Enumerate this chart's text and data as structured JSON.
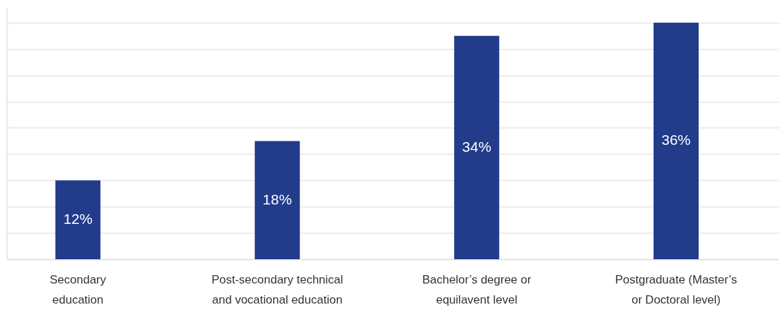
{
  "chart_data": {
    "type": "bar",
    "categories": [
      "Secondary\neducation",
      "Post-secondary technical\nand vocational education",
      "Bachelor’s degree or\nequilavent level",
      "Postgraduate (Master’s\nor Doctoral level)"
    ],
    "values": [
      12,
      18,
      34,
      36
    ],
    "value_labels": [
      "12%",
      "18%",
      "34%",
      "36%"
    ],
    "color": "#223b8a",
    "ylim": [
      0,
      38.4
    ],
    "yticks": [
      {
        "value": 0,
        "label": null
      },
      {
        "value": 4,
        "label": null
      },
      {
        "value": 8,
        "label": null
      },
      {
        "value": 12,
        "label": null
      },
      {
        "value": 16,
        "label": null
      },
      {
        "value": 20,
        "label": null
      },
      {
        "value": 24,
        "label": null
      },
      {
        "value": 28,
        "label": null
      },
      {
        "value": 32,
        "label": null
      },
      {
        "value": 36,
        "label": null
      }
    ],
    "grid": "y",
    "tick_labels": "x"
  }
}
